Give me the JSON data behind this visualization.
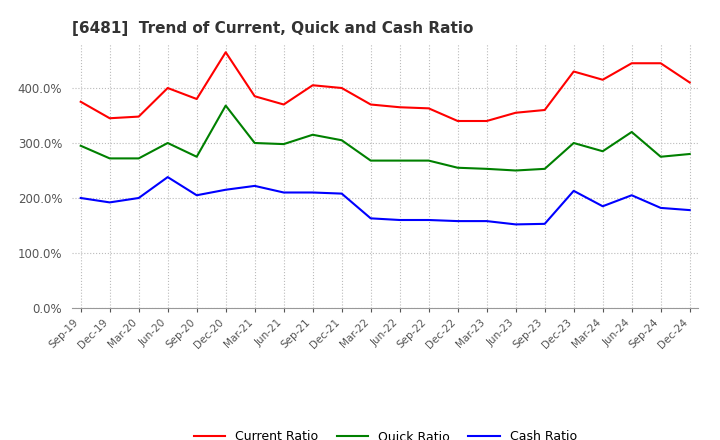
{
  "title": "[6481]  Trend of Current, Quick and Cash Ratio",
  "x_labels": [
    "Sep-19",
    "Dec-19",
    "Mar-20",
    "Jun-20",
    "Sep-20",
    "Dec-20",
    "Mar-21",
    "Jun-21",
    "Sep-21",
    "Dec-21",
    "Mar-22",
    "Jun-22",
    "Sep-22",
    "Dec-22",
    "Mar-23",
    "Jun-23",
    "Sep-23",
    "Dec-23",
    "Mar-24",
    "Jun-24",
    "Sep-24",
    "Dec-24"
  ],
  "current_ratio": [
    375,
    345,
    348,
    400,
    380,
    465,
    385,
    370,
    405,
    400,
    370,
    365,
    363,
    340,
    340,
    355,
    360,
    430,
    415,
    445,
    445,
    410
  ],
  "quick_ratio": [
    295,
    272,
    272,
    300,
    275,
    368,
    300,
    298,
    315,
    305,
    268,
    268,
    268,
    255,
    253,
    250,
    253,
    300,
    285,
    320,
    275,
    280
  ],
  "cash_ratio": [
    200,
    192,
    200,
    238,
    205,
    215,
    222,
    210,
    210,
    208,
    163,
    160,
    160,
    158,
    158,
    152,
    153,
    213,
    185,
    205,
    182,
    178
  ],
  "current_color": "#ff0000",
  "quick_color": "#008000",
  "cash_color": "#0000ff",
  "ylim": [
    0,
    480
  ],
  "yticks": [
    0,
    100,
    200,
    300,
    400
  ],
  "background_color": "#ffffff",
  "grid_color": "#bbbbbb"
}
